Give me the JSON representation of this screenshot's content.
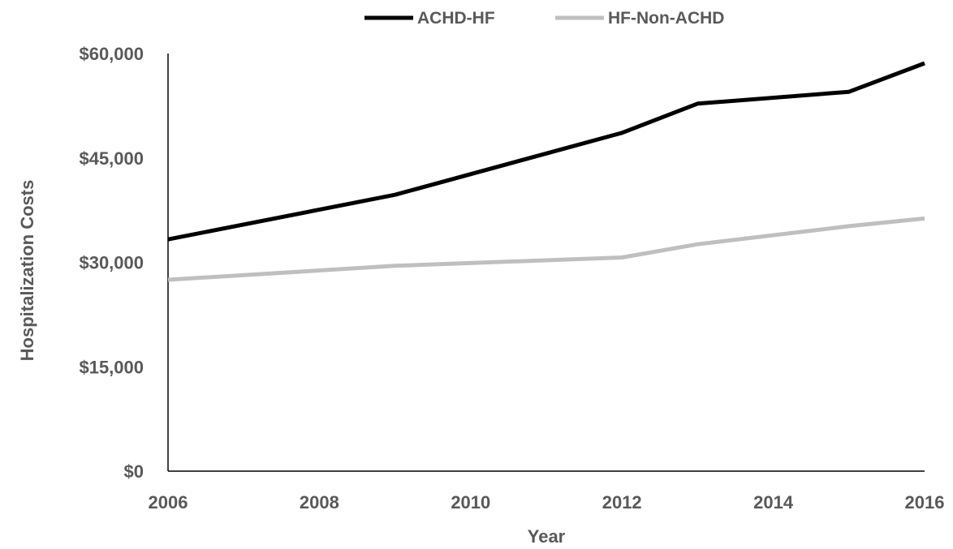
{
  "chart_data": {
    "type": "line",
    "title": "",
    "xlabel": "Year",
    "ylabel": "Hospitalization Costs",
    "xlim": [
      2006,
      2016
    ],
    "ylim": [
      0,
      60000
    ],
    "x_ticks": [
      "2006",
      "2008",
      "2010",
      "2012",
      "2014",
      "2016"
    ],
    "y_ticks": [
      "$0",
      "$15,000",
      "$30,000",
      "$45,000",
      "$60,000"
    ],
    "grid": false,
    "legend_position": "top",
    "series": [
      {
        "name": "ACHD-HF",
        "color": "#000000",
        "x": [
          2006,
          2009,
          2012,
          2013,
          2015,
          2016
        ],
        "y": [
          33300,
          39700,
          48600,
          52800,
          54500,
          58600
        ]
      },
      {
        "name": "HF-Non-ACHD",
        "color": "#bfbfbf",
        "x": [
          2006,
          2009,
          2012,
          2013,
          2015,
          2016
        ],
        "y": [
          27500,
          29500,
          30700,
          32600,
          35200,
          36300
        ]
      }
    ]
  }
}
